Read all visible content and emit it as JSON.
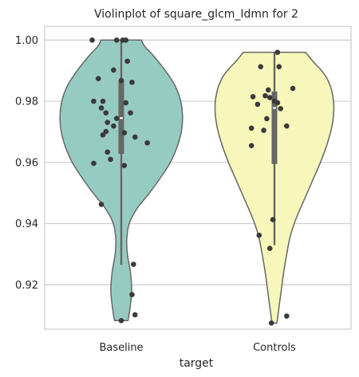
{
  "chart_data": {
    "type": "violin",
    "title": "Violinplot of square_glcm_Idmn for 2",
    "xlabel": "target",
    "ylabel": "",
    "categories": [
      "Baseline",
      "Controls"
    ],
    "ylim": [
      0.9055,
      1.0045
    ],
    "yticks": [
      0.92,
      0.94,
      0.96,
      0.98,
      1.0
    ],
    "ytick_labels": [
      "0.92",
      "0.94",
      "0.96",
      "0.98",
      "1.00"
    ],
    "grid": "horizontal",
    "colors": {
      "Baseline": "#96cbc2",
      "Controls": "#f7f7bb",
      "outline": "#666666",
      "points": "#3a3a3a",
      "box": "#666666",
      "grid": "#cccccc",
      "frame": "#cccccc"
    },
    "violins": [
      {
        "name": "Baseline",
        "min": 0.9083,
        "max": 1.0,
        "q1": 0.9628,
        "q3": 0.9868,
        "median": 0.9745,
        "whisker_low": 0.9265,
        "whisker_high": 1.0,
        "density": [
          [
            0.9083,
            0.11
          ],
          [
            0.912,
            0.14
          ],
          [
            0.918,
            0.17
          ],
          [
            0.924,
            0.15
          ],
          [
            0.93,
            0.1
          ],
          [
            0.935,
            0.09
          ],
          [
            0.94,
            0.13
          ],
          [
            0.945,
            0.26
          ],
          [
            0.95,
            0.46
          ],
          [
            0.955,
            0.64
          ],
          [
            0.96,
            0.8
          ],
          [
            0.965,
            0.91
          ],
          [
            0.97,
            0.98
          ],
          [
            0.975,
            1.0
          ],
          [
            0.98,
            0.97
          ],
          [
            0.985,
            0.88
          ],
          [
            0.99,
            0.72
          ],
          [
            0.995,
            0.52
          ],
          [
            0.998,
            0.38
          ],
          [
            1.0,
            0.33
          ]
        ],
        "points": [
          {
            "x": -0.03,
            "y": 1.0
          },
          {
            "x": 0.01,
            "y": 1.0
          },
          {
            "x": -0.19,
            "y": 1.0
          },
          {
            "x": 0.03,
            "y": 1.0
          },
          {
            "x": 0.04,
            "y": 0.9931
          },
          {
            "x": -0.05,
            "y": 0.9902
          },
          {
            "x": -0.15,
            "y": 0.9874
          },
          {
            "x": 0.0,
            "y": 0.9868
          },
          {
            "x": 0.07,
            "y": 0.9862
          },
          {
            "x": -0.12,
            "y": 0.98
          },
          {
            "x": -0.18,
            "y": 0.98
          },
          {
            "x": 0.03,
            "y": 0.9795
          },
          {
            "x": -0.13,
            "y": 0.9778
          },
          {
            "x": -0.1,
            "y": 0.9762
          },
          {
            "x": 0.06,
            "y": 0.9762
          },
          {
            "x": -0.03,
            "y": 0.9744
          },
          {
            "x": -0.09,
            "y": 0.9731
          },
          {
            "x": -0.05,
            "y": 0.9719
          },
          {
            "x": -0.1,
            "y": 0.9701
          },
          {
            "x": 0.02,
            "y": 0.9697
          },
          {
            "x": -0.12,
            "y": 0.969
          },
          {
            "x": 0.09,
            "y": 0.9683
          },
          {
            "x": 0.17,
            "y": 0.9664
          },
          {
            "x": -0.09,
            "y": 0.9634
          },
          {
            "x": -0.07,
            "y": 0.961
          },
          {
            "x": -0.18,
            "y": 0.9597
          },
          {
            "x": 0.02,
            "y": 0.959
          },
          {
            "x": -0.13,
            "y": 0.9463
          },
          {
            "x": 0.08,
            "y": 0.9267
          },
          {
            "x": 0.07,
            "y": 0.9168
          },
          {
            "x": 0.09,
            "y": 0.9102
          },
          {
            "x": 0.0,
            "y": 0.9083
          }
        ]
      },
      {
        "name": "Controls",
        "min": 0.9075,
        "max": 0.996,
        "q1": 0.9595,
        "q3": 0.9832,
        "median": 0.9778,
        "whisker_low": 0.933,
        "whisker_high": 0.996,
        "density": [
          [
            0.9075,
            0.04
          ],
          [
            0.912,
            0.07
          ],
          [
            0.918,
            0.11
          ],
          [
            0.924,
            0.15
          ],
          [
            0.93,
            0.2
          ],
          [
            0.936,
            0.26
          ],
          [
            0.942,
            0.36
          ],
          [
            0.948,
            0.49
          ],
          [
            0.954,
            0.62
          ],
          [
            0.96,
            0.75
          ],
          [
            0.966,
            0.86
          ],
          [
            0.972,
            0.94
          ],
          [
            0.978,
            0.97
          ],
          [
            0.983,
            0.94
          ],
          [
            0.987,
            0.87
          ],
          [
            0.99,
            0.77
          ],
          [
            0.993,
            0.63
          ],
          [
            0.996,
            0.51
          ]
        ],
        "points": [
          {
            "x": 0.02,
            "y": 0.996
          },
          {
            "x": -0.09,
            "y": 0.9913
          },
          {
            "x": 0.03,
            "y": 0.9913
          },
          {
            "x": 0.12,
            "y": 0.9842
          },
          {
            "x": -0.04,
            "y": 0.9837
          },
          {
            "x": -0.06,
            "y": 0.9818
          },
          {
            "x": -0.14,
            "y": 0.9815
          },
          {
            "x": -0.03,
            "y": 0.9812
          },
          {
            "x": 0.0,
            "y": 0.98
          },
          {
            "x": -0.11,
            "y": 0.979
          },
          {
            "x": 0.02,
            "y": 0.9795
          },
          {
            "x": 0.04,
            "y": 0.9776
          },
          {
            "x": -0.05,
            "y": 0.9743
          },
          {
            "x": 0.08,
            "y": 0.9719
          },
          {
            "x": -0.15,
            "y": 0.9712
          },
          {
            "x": -0.07,
            "y": 0.9705
          },
          {
            "x": -0.15,
            "y": 0.9655
          },
          {
            "x": -0.01,
            "y": 0.9413
          },
          {
            "x": -0.1,
            "y": 0.9362
          },
          {
            "x": -0.03,
            "y": 0.9319
          },
          {
            "x": 0.08,
            "y": 0.9098
          },
          {
            "x": -0.02,
            "y": 0.9075
          }
        ]
      }
    ]
  }
}
